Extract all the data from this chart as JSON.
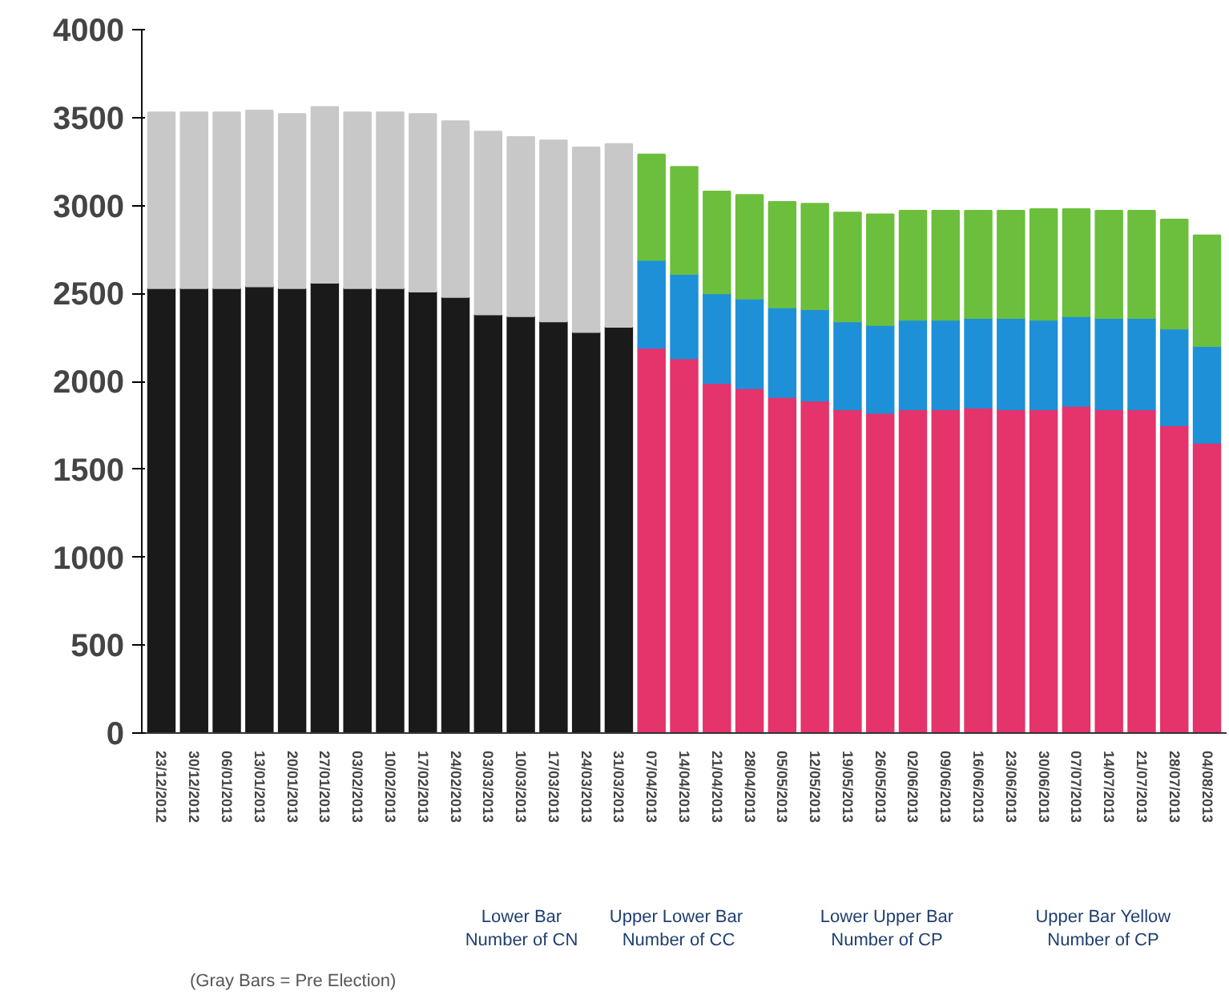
{
  "chart_data": {
    "type": "bar",
    "stacked": true,
    "categories": [
      "23/12/2012",
      "30/12/2012",
      "06/01/2013",
      "13/01/2013",
      "20/01/2013",
      "27/01/2013",
      "03/02/2013",
      "10/02/2013",
      "17/02/2013",
      "24/02/2013",
      "03/03/2013",
      "10/03/2013",
      "17/03/2013",
      "24/03/2013",
      "31/03/2013",
      "07/04/2013",
      "14/04/2013",
      "21/04/2013",
      "28/04/2013",
      "05/05/2013",
      "12/05/2013",
      "19/05/2013",
      "26/05/2013",
      "02/06/2013",
      "09/06/2013",
      "16/06/2013",
      "23/06/2013",
      "30/06/2013",
      "07/07/2013",
      "14/07/2013",
      "21/07/2013",
      "28/07/2013",
      "04/08/2013"
    ],
    "series": [
      {
        "color": "#1a1a1a",
        "values": [
          2530,
          2530,
          2530,
          2540,
          2530,
          2560,
          2530,
          2530,
          2510,
          2480,
          2380,
          2370,
          2340,
          2280,
          2310,
          null,
          null,
          null,
          null,
          null,
          null,
          null,
          null,
          null,
          null,
          null,
          null,
          null,
          null,
          null,
          null,
          null,
          null
        ]
      },
      {
        "color": "#c8c8c8",
        "values": [
          1000,
          1000,
          1000,
          1000,
          990,
          1000,
          1000,
          1000,
          1010,
          1000,
          1040,
          1020,
          1030,
          1050,
          1040,
          null,
          null,
          null,
          null,
          null,
          null,
          null,
          null,
          null,
          null,
          null,
          null,
          null,
          null,
          null,
          null,
          null,
          null
        ]
      },
      {
        "color": "#e5336b",
        "values": [
          null,
          null,
          null,
          null,
          null,
          null,
          null,
          null,
          null,
          null,
          null,
          null,
          null,
          null,
          null,
          2190,
          2130,
          1990,
          1960,
          1910,
          1890,
          1840,
          1820,
          1840,
          1840,
          1850,
          1840,
          1840,
          1860,
          1840,
          1840,
          1750,
          1650
        ]
      },
      {
        "color": "#1e90d8",
        "values": [
          null,
          null,
          null,
          null,
          null,
          null,
          null,
          null,
          null,
          null,
          null,
          null,
          null,
          null,
          null,
          500,
          480,
          510,
          510,
          510,
          520,
          500,
          500,
          510,
          510,
          510,
          520,
          510,
          510,
          520,
          520,
          550,
          550
        ]
      },
      {
        "color": "#6cbf3c",
        "values": [
          null,
          null,
          null,
          null,
          null,
          null,
          null,
          null,
          null,
          null,
          null,
          null,
          null,
          null,
          null,
          600,
          610,
          580,
          590,
          600,
          600,
          620,
          630,
          620,
          620,
          610,
          610,
          630,
          610,
          610,
          610,
          620,
          630
        ]
      }
    ],
    "ylim": [
      0,
      4000
    ],
    "yticks": [
      0,
      500,
      1000,
      1500,
      2000,
      2500,
      3000,
      3500,
      4000
    ],
    "grid": false,
    "annotations": [
      "Lower Bar\nNumber of CN",
      "Upper  Lower Bar\nNumber of CC",
      "Lower Upper Bar\nNumber of CP",
      "Upper Bar Yellow\nNumber of CP",
      "(Gray Bars = Pre Election)"
    ]
  }
}
